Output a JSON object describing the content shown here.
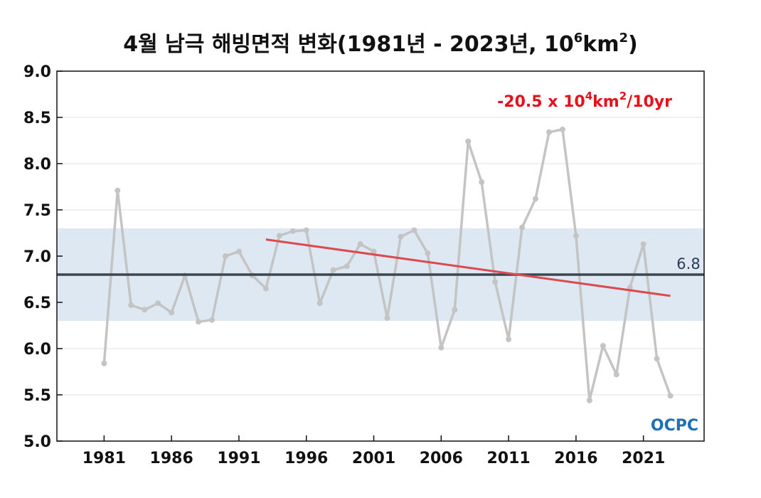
{
  "chart_data": {
    "type": "line",
    "title": {
      "main": "4월 남극 해빙면적 변화(1981년 - 2023년, 10",
      "exp1": "6",
      "mid": "km",
      "exp2": "2",
      "end": ")"
    },
    "xlabel": "",
    "ylabel": "",
    "xlim": [
      1977.5,
      2025.5
    ],
    "ylim": [
      5.0,
      9.0
    ],
    "x_ticks": [
      1981,
      1986,
      1991,
      1996,
      2001,
      2006,
      2011,
      2016,
      2021
    ],
    "y_ticks": [
      "5.0",
      "5.5",
      "6.0",
      "6.5",
      "7.0",
      "7.5",
      "8.0",
      "8.5",
      "9.0"
    ],
    "grid": true,
    "x": [
      1981,
      1982,
      1983,
      1984,
      1985,
      1986,
      1987,
      1988,
      1989,
      1990,
      1991,
      1992,
      1993,
      1994,
      1995,
      1996,
      1997,
      1998,
      1999,
      2000,
      2001,
      2002,
      2003,
      2004,
      2005,
      2006,
      2007,
      2008,
      2009,
      2010,
      2011,
      2012,
      2013,
      2014,
      2015,
      2016,
      2017,
      2018,
      2019,
      2020,
      2021,
      2022,
      2023
    ],
    "series": [
      {
        "values": [
          5.84,
          7.71,
          6.47,
          6.42,
          6.49,
          6.39,
          6.79,
          6.29,
          6.31,
          7.0,
          7.05,
          6.79,
          6.65,
          7.22,
          7.27,
          7.28,
          6.49,
          6.85,
          6.89,
          7.13,
          7.05,
          6.33,
          7.21,
          7.28,
          7.03,
          6.01,
          6.42,
          8.24,
          7.8,
          6.72,
          6.1,
          7.31,
          7.62,
          8.34,
          8.37,
          7.22,
          5.44,
          6.03,
          5.72,
          6.66,
          7.13,
          5.89,
          5.49
        ]
      }
    ],
    "mean": {
      "value": 6.8,
      "label": "6.8"
    },
    "band": [
      6.3,
      7.3
    ],
    "trend": {
      "x_start": 1993,
      "y_start": 7.18,
      "x_end": 2023,
      "y_end": 6.57,
      "label_main": "-20.5 x 10",
      "label_exp1": "4",
      "label_mid": "km",
      "label_exp2": "2",
      "label_end": "/10yr"
    },
    "colors": {
      "series": "#c4c4c4",
      "band": "#dde8f2",
      "mean": "#3d4650",
      "trend": "#dc4a4f",
      "grid": "#e2e2e2"
    },
    "logo": "OCPC"
  }
}
